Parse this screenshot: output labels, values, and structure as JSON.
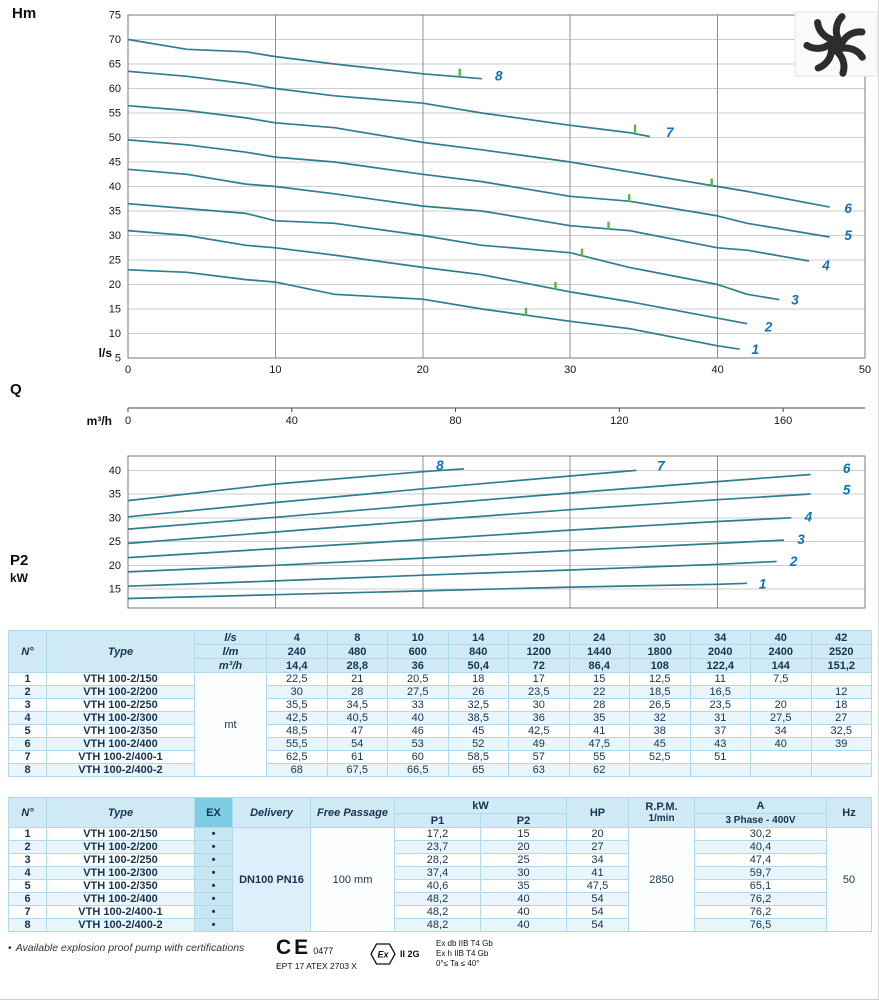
{
  "axis_labels": {
    "hm": "Hm",
    "ls": "l/s",
    "q": "Q",
    "m3h": "m³/h",
    "p2": "P2",
    "kw": "kW"
  },
  "colors": {
    "curve": "#2f7e8e",
    "curve_label": "#0c72ba",
    "duty_marker": "#55b54b",
    "table_header_bg": "#cfe9f5",
    "table_alt_row_bg": "#e9f5fb",
    "ex_header_bg": "#7fcde5",
    "table_border": "#afd9ec",
    "text_navy": "#17334f"
  },
  "chart_data": [
    {
      "type": "line",
      "title": "Head vs flow",
      "xlabel": "Q (l/s)",
      "x2label": "Q (m³/h)",
      "ylabel": "Hm",
      "xlim": [
        0,
        50
      ],
      "ylim": [
        5,
        75
      ],
      "x_ticks": [
        0,
        10,
        20,
        30,
        40,
        50
      ],
      "x2_ticks": [
        0,
        40,
        80,
        120,
        160
      ],
      "y_ticks": [
        5,
        10,
        15,
        20,
        25,
        30,
        35,
        40,
        45,
        50,
        55,
        60,
        65,
        70,
        75
      ],
      "grid": true,
      "legend_position": "curve-end",
      "series": [
        {
          "name": "1",
          "x": [
            0,
            4,
            8,
            10,
            14,
            20,
            24,
            30,
            34,
            40,
            41.5
          ],
          "y": [
            23,
            22.5,
            21,
            20.5,
            18,
            17,
            15,
            12.5,
            11,
            7.5,
            6.8
          ],
          "label_at": [
            42.3,
            6.6
          ],
          "marker": [
            27,
            13.8
          ]
        },
        {
          "name": "2",
          "x": [
            0,
            4,
            8,
            10,
            14,
            20,
            24,
            30,
            34,
            42
          ],
          "y": [
            31,
            30,
            28,
            27.5,
            26,
            23.5,
            22,
            18.5,
            16.5,
            12
          ],
          "label_at": [
            43.2,
            11.2
          ],
          "marker": [
            29,
            19.1
          ]
        },
        {
          "name": "3",
          "x": [
            0,
            4,
            8,
            10,
            14,
            20,
            24,
            30,
            34,
            40,
            42,
            44.2
          ],
          "y": [
            36.5,
            35.5,
            34.5,
            33,
            32.5,
            30,
            28,
            26.5,
            23.5,
            20,
            18,
            16.9
          ],
          "label_at": [
            45,
            16.7
          ],
          "marker": [
            30.8,
            25.9
          ]
        },
        {
          "name": "4",
          "x": [
            0,
            4,
            8,
            10,
            14,
            20,
            24,
            30,
            34,
            40,
            42,
            46.2
          ],
          "y": [
            43.5,
            42.5,
            40.5,
            40,
            38.5,
            36,
            35,
            32,
            31,
            27.5,
            27,
            24.8
          ],
          "label_at": [
            47.1,
            23.8
          ],
          "marker": [
            32.6,
            31.4
          ]
        },
        {
          "name": "5",
          "x": [
            0,
            4,
            8,
            10,
            14,
            20,
            24,
            30,
            34,
            40,
            42,
            47.6
          ],
          "y": [
            49.5,
            48.5,
            47,
            46,
            45,
            42.5,
            41,
            38,
            37,
            34,
            32.5,
            29.7
          ],
          "label_at": [
            48.6,
            29.9
          ],
          "marker": [
            34,
            37
          ]
        },
        {
          "name": "6",
          "x": [
            0,
            4,
            8,
            10,
            14,
            20,
            24,
            30,
            34,
            40,
            42,
            47.6
          ],
          "y": [
            56.5,
            55.5,
            54,
            53,
            52,
            49,
            47.5,
            45,
            43,
            40,
            39,
            35.8
          ],
          "label_at": [
            48.6,
            35.4
          ],
          "marker": [
            39.6,
            40.2
          ]
        },
        {
          "name": "7",
          "x": [
            0,
            4,
            8,
            10,
            14,
            20,
            24,
            30,
            34,
            35.4
          ],
          "y": [
            63.5,
            62.5,
            61,
            60,
            58.5,
            57,
            55,
            52.5,
            51,
            50.2
          ],
          "label_at": [
            36.5,
            50.9
          ],
          "marker": [
            34.4,
            51.2
          ]
        },
        {
          "name": "8",
          "x": [
            0,
            4,
            8,
            10,
            14,
            20,
            24
          ],
          "y": [
            70,
            68,
            67.5,
            66.5,
            65,
            63,
            62
          ],
          "label_at": [
            24.9,
            62.4
          ],
          "marker": [
            22.5,
            62.6
          ]
        }
      ]
    },
    {
      "type": "line",
      "title": "Shaft power P2 vs flow",
      "ylabel": "P2 (kW)",
      "xlim": [
        0,
        50
      ],
      "ylim": [
        11,
        43
      ],
      "x_ticks": [
        0,
        10,
        20,
        30,
        40,
        50
      ],
      "y_ticks": [
        15,
        20,
        25,
        30,
        35,
        40
      ],
      "grid": true,
      "legend_position": "curve-end",
      "series": [
        {
          "name": "1",
          "x": [
            0,
            10,
            20,
            30,
            40,
            42
          ],
          "y": [
            13,
            13.8,
            14.6,
            15.4,
            16,
            16.2
          ],
          "label_at": [
            42.8,
            16
          ]
        },
        {
          "name": "2",
          "x": [
            0,
            10,
            20,
            30,
            40,
            44
          ],
          "y": [
            15.6,
            16.7,
            17.9,
            19,
            20.2,
            20.8
          ],
          "label_at": [
            44.9,
            20.7
          ]
        },
        {
          "name": "3",
          "x": [
            0,
            10,
            20,
            30,
            40,
            44.5
          ],
          "y": [
            18.6,
            20,
            21.5,
            23.1,
            24.6,
            25.3
          ],
          "label_at": [
            45.4,
            25.3
          ]
        },
        {
          "name": "4",
          "x": [
            0,
            10,
            20,
            30,
            40,
            45
          ],
          "y": [
            21.6,
            23.5,
            25.4,
            27.4,
            29.2,
            30
          ],
          "label_at": [
            45.9,
            30.1
          ]
        },
        {
          "name": "5",
          "x": [
            0,
            10,
            20,
            30,
            40,
            46.3
          ],
          "y": [
            24.6,
            27,
            29.4,
            31.7,
            33.8,
            35
          ],
          "label_at": [
            48.5,
            35.7
          ]
        },
        {
          "name": "6",
          "x": [
            0,
            10,
            20,
            30,
            40,
            46.3
          ],
          "y": [
            27.6,
            30.1,
            32.7,
            35.2,
            37.6,
            39.1
          ],
          "label_at": [
            48.5,
            40.3
          ]
        },
        {
          "name": "7",
          "x": [
            0,
            10,
            20,
            30,
            34.5
          ],
          "y": [
            30.2,
            33.2,
            36.1,
            38.8,
            40
          ],
          "label_at": [
            35.9,
            40.8
          ]
        },
        {
          "name": "8",
          "x": [
            0,
            10,
            20,
            22.8
          ],
          "y": [
            33.6,
            37.1,
            39.7,
            40.3
          ],
          "label_at": [
            20.9,
            40.9
          ]
        }
      ]
    }
  ],
  "table1": {
    "no_header": "N°",
    "type_header": "Type",
    "unit_body": "mt",
    "header_rows": [
      {
        "unit": "l/s",
        "values": [
          "4",
          "8",
          "10",
          "14",
          "20",
          "24",
          "30",
          "34",
          "40",
          "42"
        ]
      },
      {
        "unit": "l/m",
        "values": [
          "240",
          "480",
          "600",
          "840",
          "1200",
          "1440",
          "1800",
          "2040",
          "2400",
          "2520"
        ]
      },
      {
        "unit": "m³/h",
        "values": [
          "14,4",
          "28,8",
          "36",
          "50,4",
          "72",
          "86,4",
          "108",
          "122,4",
          "144",
          "151,2"
        ]
      }
    ],
    "rows": [
      {
        "no": "1",
        "type": "VTH 100-2/150",
        "values": [
          "22,5",
          "21",
          "20,5",
          "18",
          "17",
          "15",
          "12,5",
          "11",
          "7,5",
          ""
        ]
      },
      {
        "no": "2",
        "type": "VTH 100-2/200",
        "values": [
          "30",
          "28",
          "27,5",
          "26",
          "23,5",
          "22",
          "18,5",
          "16,5",
          "",
          "12"
        ]
      },
      {
        "no": "3",
        "type": "VTH 100-2/250",
        "values": [
          "35,5",
          "34,5",
          "33",
          "32,5",
          "30",
          "28",
          "26,5",
          "23,5",
          "20",
          "18"
        ]
      },
      {
        "no": "4",
        "type": "VTH 100-2/300",
        "values": [
          "42,5",
          "40,5",
          "40",
          "38,5",
          "36",
          "35",
          "32",
          "31",
          "27,5",
          "27"
        ]
      },
      {
        "no": "5",
        "type": "VTH 100-2/350",
        "values": [
          "48,5",
          "47",
          "46",
          "45",
          "42,5",
          "41",
          "38",
          "37",
          "34",
          "32,5"
        ]
      },
      {
        "no": "6",
        "type": "VTH 100-2/400",
        "values": [
          "55,5",
          "54",
          "53",
          "52",
          "49",
          "47,5",
          "45",
          "43",
          "40",
          "39"
        ]
      },
      {
        "no": "7",
        "type": "VTH 100-2/400-1",
        "values": [
          "62,5",
          "61",
          "60",
          "58,5",
          "57",
          "55",
          "52,5",
          "51",
          "",
          ""
        ]
      },
      {
        "no": "8",
        "type": "VTH 100-2/400-2",
        "values": [
          "68",
          "67,5",
          "66,5",
          "65",
          "63",
          "62",
          "",
          "",
          "",
          ""
        ]
      }
    ]
  },
  "table2": {
    "headers": {
      "no": "N°",
      "type": "Type",
      "ex": "EX",
      "delivery": "Delivery",
      "free_passage": "Free Passage",
      "kw": "kW",
      "p1": "P1",
      "p2": "P2",
      "hp": "HP",
      "rpm": "R.P.M.",
      "rpm_unit": "1/min",
      "a": "A",
      "phase": "3 Phase - 400V",
      "hz": "Hz"
    },
    "merged": {
      "delivery": "DN100 PN16",
      "free_passage": "100 mm",
      "rpm": "2850",
      "hz": "50"
    },
    "rows": [
      {
        "no": "1",
        "type": "VTH 100-2/150",
        "ex": "•",
        "p1": "17,2",
        "p2": "15",
        "hp": "20",
        "a": "30,2"
      },
      {
        "no": "2",
        "type": "VTH 100-2/200",
        "ex": "•",
        "p1": "23,7",
        "p2": "20",
        "hp": "27",
        "a": "40,4"
      },
      {
        "no": "3",
        "type": "VTH 100-2/250",
        "ex": "•",
        "p1": "28,2",
        "p2": "25",
        "hp": "34",
        "a": "47,4"
      },
      {
        "no": "4",
        "type": "VTH 100-2/300",
        "ex": "•",
        "p1": "37,4",
        "p2": "30",
        "hp": "41",
        "a": "59,7"
      },
      {
        "no": "5",
        "type": "VTH 100-2/350",
        "ex": "•",
        "p1": "40,6",
        "p2": "35",
        "hp": "47,5",
        "a": "65,1"
      },
      {
        "no": "6",
        "type": "VTH 100-2/400",
        "ex": "•",
        "p1": "48,2",
        "p2": "40",
        "hp": "54",
        "a": "76,2"
      },
      {
        "no": "7",
        "type": "VTH 100-2/400-1",
        "ex": "•",
        "p1": "48,2",
        "p2": "40",
        "hp": "54",
        "a": "76,2"
      },
      {
        "no": "8",
        "type": "VTH 100-2/400-2",
        "ex": "•",
        "p1": "48,2",
        "p2": "40",
        "hp": "54",
        "a": "76,5"
      }
    ]
  },
  "footer": {
    "bullet": "•",
    "note": "Available explosion proof pump with certifications",
    "ce_mark": "CE",
    "ce_number": "0477",
    "atex_code": "EPT 17 ATEX 2703 X",
    "ex_symbol": "Ex",
    "ex_group": "II 2G",
    "cert_lines": [
      "Ex db IIB T4 Gb",
      "Ex h IIB T4 Gb",
      "0°≤ Ta ≤ 40°"
    ]
  }
}
